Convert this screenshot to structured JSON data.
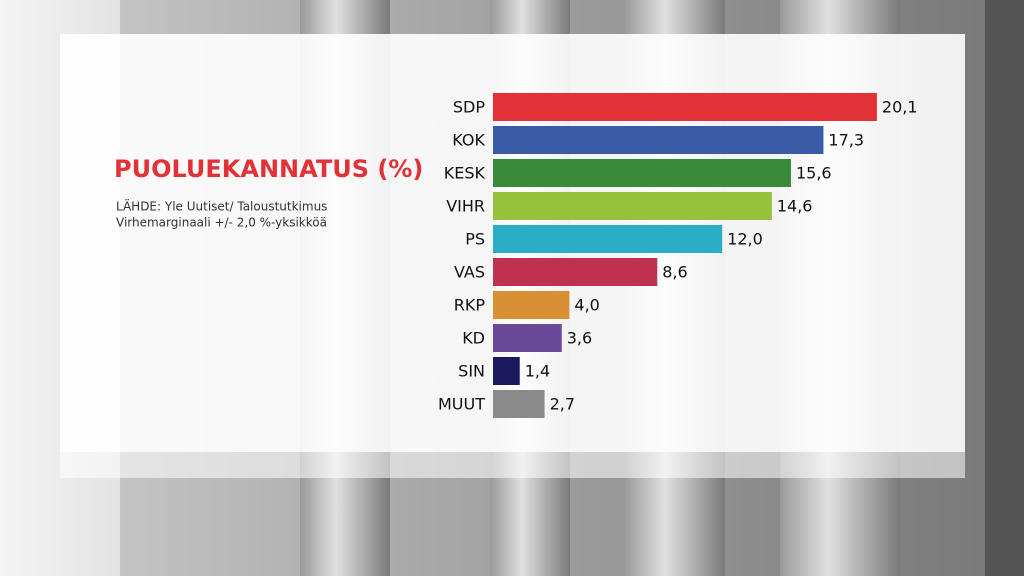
{
  "chart_data": {
    "type": "bar",
    "orientation": "horizontal",
    "title": "PUOLUEKANNATUS (%)",
    "source": "LÄHDE: Yle Uutiset/ Taloustutkimus",
    "note": "Virhemarginaali +/- 2,0 %-yksikköä",
    "categories": [
      "SDP",
      "KOK",
      "KESK",
      "VIHR",
      "PS",
      "VAS",
      "RKP",
      "KD",
      "SIN",
      "MUUT"
    ],
    "values": [
      20.1,
      17.3,
      15.6,
      14.6,
      12.0,
      8.6,
      4.0,
      3.6,
      1.4,
      2.7
    ],
    "value_labels": [
      "20,1",
      "17,3",
      "15,6",
      "14,6",
      "12,0",
      "8,6",
      "4,0",
      "3,6",
      "1,4",
      "2,7"
    ],
    "colors": [
      "#e23238",
      "#3a5ba6",
      "#3a8a3c",
      "#95c23a",
      "#2aaec6",
      "#c0304f",
      "#d99032",
      "#6a4999",
      "#1b1a5e",
      "#8a8a8a"
    ]
  }
}
